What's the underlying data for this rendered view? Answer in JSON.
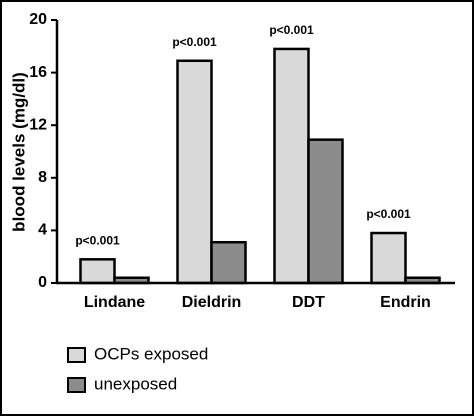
{
  "chart_data": {
    "type": "bar",
    "y_label": "blood levels (mg/dl)",
    "categories": [
      "Lindane",
      "Dieldrin",
      "DDT",
      "Endrin"
    ],
    "series": [
      {
        "name": "OCPs exposed",
        "color": "#d9d9d9",
        "values": [
          1.8,
          16.9,
          17.8,
          3.8
        ]
      },
      {
        "name": "unexposed",
        "color": "#8c8c8c",
        "values": [
          0.4,
          3.1,
          10.9,
          0.4
        ]
      }
    ],
    "annotations": [
      "p<0.001",
      "p<0.001",
      "p<0.001",
      "p<0.001"
    ],
    "ylim": [
      0,
      20
    ],
    "yticks": [
      0,
      4,
      8,
      12,
      16,
      20
    ],
    "grid": false
  }
}
